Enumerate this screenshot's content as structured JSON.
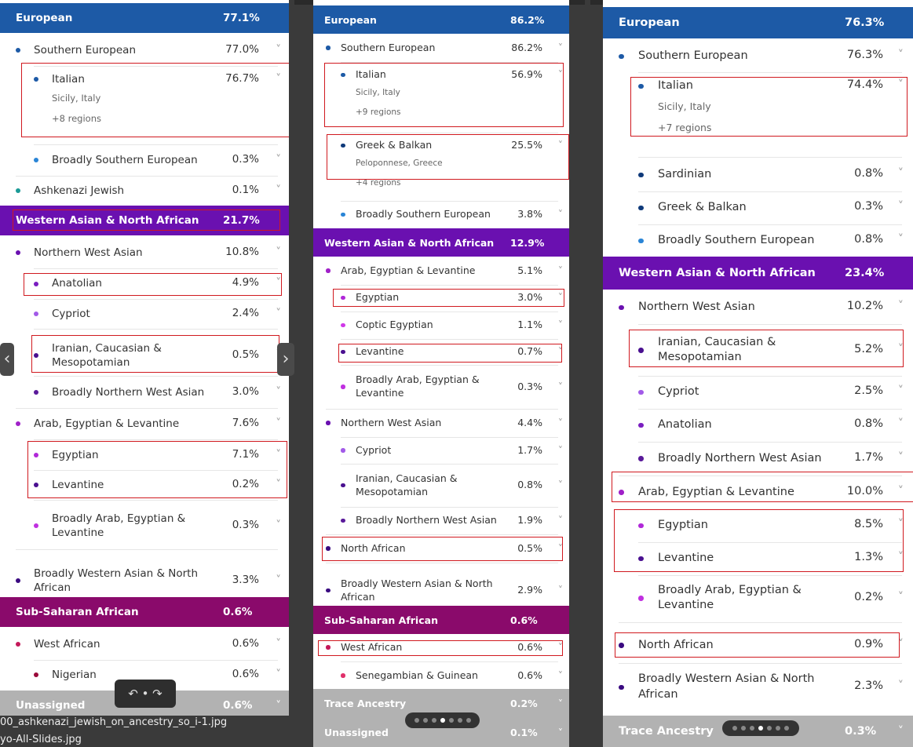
{
  "colors": {
    "european": "#1d5aa6",
    "wana": "#6a10b0",
    "ssa": "#8a0a6b",
    "grey": "#b2b2b2",
    "hl": "#d0191f"
  },
  "nav": {
    "prev_icon": "chevron-left-icon",
    "next_icon": "chevron-right-icon",
    "arrow_left": "‹",
    "arrow_right": "›",
    "undo_redo": "↶ • ↷"
  },
  "captions": {
    "file1": "00_ashkenazi_jewish_on_ancestry_so_i-1.jpg",
    "file2": "yo-All-Slides.jpg"
  },
  "panels": [
    {
      "id": "panel-1",
      "items": [
        {
          "k": "region",
          "label": "European",
          "pct": "77.1%",
          "color": "european"
        },
        {
          "k": "row",
          "lvl": 1,
          "label": "Southern European",
          "pct": "77.0%",
          "dot": "#1d5aa6"
        },
        {
          "k": "row",
          "lvl": 2,
          "label": "Italian",
          "pct": "76.7%",
          "dot": "#1d5aa6",
          "sub": "Sicily, Italy",
          "sub2": "+8 regions"
        },
        {
          "k": "row",
          "lvl": 2,
          "label": "Broadly Southern European",
          "pct": "0.3%",
          "dot": "#2a85d6"
        },
        {
          "k": "row",
          "lvl": 1,
          "label": "Ashkenazi Jewish",
          "pct": "0.1%",
          "dot": "#1a9a96"
        },
        {
          "k": "region",
          "label": "Western Asian & North African",
          "pct": "21.7%",
          "color": "wana"
        },
        {
          "k": "row",
          "lvl": 1,
          "label": "Northern West Asian",
          "pct": "10.8%",
          "dot": "#6a10b0"
        },
        {
          "k": "row",
          "lvl": 2,
          "label": "Anatolian",
          "pct": "4.9%",
          "dot": "#7a1ec0"
        },
        {
          "k": "row",
          "lvl": 2,
          "label": "Cypriot",
          "pct": "2.4%",
          "dot": "#a25ae8"
        },
        {
          "k": "row",
          "lvl": 2,
          "label": "Iranian, Caucasian &",
          "label2": "Mesopotamian",
          "pct": "0.5%",
          "dot": "#4a1090"
        },
        {
          "k": "row",
          "lvl": 2,
          "label": "Broadly Northern West Asian",
          "pct": "3.0%",
          "dot": "#5a1a9a"
        },
        {
          "k": "row",
          "lvl": 1,
          "label": "Arab, Egyptian & Levantine",
          "pct": "7.6%",
          "dot": "#a020c8"
        },
        {
          "k": "row",
          "lvl": 2,
          "label": "Egyptian",
          "pct": "7.1%",
          "dot": "#b028d8"
        },
        {
          "k": "row",
          "lvl": 2,
          "label": "Levantine",
          "pct": "0.2%",
          "dot": "#4a1090"
        },
        {
          "k": "row",
          "lvl": 2,
          "label": "Broadly Arab, Egyptian &",
          "label2": "Levantine",
          "pct": "0.3%",
          "dot": "#c030e0"
        },
        {
          "k": "row",
          "lvl": 1,
          "label": "Broadly Western Asian & North",
          "label2": "African",
          "pct": "3.3%",
          "dot": "#3a0a80"
        },
        {
          "k": "region",
          "label": "Sub-Saharan African",
          "pct": "0.6%",
          "color": "ssa"
        },
        {
          "k": "row",
          "lvl": 1,
          "label": "West African",
          "pct": "0.6%",
          "dot": "#c4195a"
        },
        {
          "k": "row",
          "lvl": 2,
          "label": "Nigerian",
          "pct": "0.6%",
          "dot": "#9a0a3a"
        },
        {
          "k": "region",
          "label": "Unassigned",
          "pct": "0.6%",
          "color": "grey"
        }
      ]
    },
    {
      "id": "panel-2",
      "items": [
        {
          "k": "region",
          "label": "European",
          "pct": "86.2%",
          "color": "european"
        },
        {
          "k": "row",
          "lvl": 1,
          "label": "Southern European",
          "pct": "86.2%",
          "dot": "#1d5aa6"
        },
        {
          "k": "row",
          "lvl": 2,
          "label": "Italian",
          "pct": "56.9%",
          "dot": "#1d5aa6",
          "sub": "Sicily, Italy",
          "sub2": "+9 regions"
        },
        {
          "k": "row",
          "lvl": 2,
          "label": "Greek & Balkan",
          "pct": "25.5%",
          "dot": "#0f3a7a",
          "sub": "Peloponnese, Greece",
          "sub2": "+4 regions"
        },
        {
          "k": "row",
          "lvl": 2,
          "label": "Broadly Southern European",
          "pct": "3.8%",
          "dot": "#2a85d6"
        },
        {
          "k": "region",
          "label": "Western Asian & North African",
          "pct": "12.9%",
          "color": "wana"
        },
        {
          "k": "row",
          "lvl": 1,
          "label": "Arab, Egyptian & Levantine",
          "pct": "5.1%",
          "dot": "#a020c8"
        },
        {
          "k": "row",
          "lvl": 2,
          "label": "Egyptian",
          "pct": "3.0%",
          "dot": "#b028d8"
        },
        {
          "k": "row",
          "lvl": 2,
          "label": "Coptic Egyptian",
          "pct": "1.1%",
          "dot": "#d038e8"
        },
        {
          "k": "row",
          "lvl": 2,
          "label": "Levantine",
          "pct": "0.7%",
          "dot": "#4a1090"
        },
        {
          "k": "row",
          "lvl": 2,
          "label": "Broadly Arab, Egyptian &",
          "label2": "Levantine",
          "pct": "0.3%",
          "dot": "#c030e0"
        },
        {
          "k": "row",
          "lvl": 1,
          "label": "Northern West Asian",
          "pct": "4.4%",
          "dot": "#6a10b0"
        },
        {
          "k": "row",
          "lvl": 2,
          "label": "Cypriot",
          "pct": "1.7%",
          "dot": "#a25ae8"
        },
        {
          "k": "row",
          "lvl": 2,
          "label": "Iranian, Caucasian &",
          "label2": "Mesopotamian",
          "pct": "0.8%",
          "dot": "#4a1090"
        },
        {
          "k": "row",
          "lvl": 2,
          "label": "Broadly Northern West Asian",
          "pct": "1.9%",
          "dot": "#5a1a9a"
        },
        {
          "k": "row",
          "lvl": 1,
          "label": "North African",
          "pct": "0.5%",
          "dot": "#3a0a80"
        },
        {
          "k": "row",
          "lvl": 1,
          "label": "Broadly Western Asian & North",
          "label2": "African",
          "pct": "2.9%",
          "dot": "#3a0a80"
        },
        {
          "k": "region",
          "label": "Sub-Saharan African",
          "pct": "0.6%",
          "color": "ssa"
        },
        {
          "k": "row",
          "lvl": 1,
          "label": "West African",
          "pct": "0.6%",
          "dot": "#c4195a"
        },
        {
          "k": "row",
          "lvl": 2,
          "label": "Senegambian & Guinean",
          "pct": "0.6%",
          "dot": "#e0306a"
        },
        {
          "k": "region",
          "label": "Trace Ancestry",
          "pct": "0.2%",
          "color": "grey"
        },
        {
          "k": "region",
          "label": "Unassigned",
          "pct": "0.1%",
          "color": "grey"
        }
      ]
    },
    {
      "id": "panel-3",
      "items": [
        {
          "k": "region",
          "label": "European",
          "pct": "76.3%",
          "color": "european"
        },
        {
          "k": "row",
          "lvl": 1,
          "label": "Southern European",
          "pct": "76.3%",
          "dot": "#1d5aa6"
        },
        {
          "k": "row",
          "lvl": 2,
          "label": "Italian",
          "pct": "74.4%",
          "dot": "#1d5aa6",
          "sub": "Sicily, Italy",
          "sub2": "+7 regions"
        },
        {
          "k": "row",
          "lvl": 2,
          "label": "Sardinian",
          "pct": "0.8%",
          "dot": "#0f3a7a"
        },
        {
          "k": "row",
          "lvl": 2,
          "label": "Greek & Balkan",
          "pct": "0.3%",
          "dot": "#0f3a7a"
        },
        {
          "k": "row",
          "lvl": 2,
          "label": "Broadly Southern European",
          "pct": "0.8%",
          "dot": "#2a85d6"
        },
        {
          "k": "region",
          "label": "Western Asian & North African",
          "pct": "23.4%",
          "color": "wana"
        },
        {
          "k": "row",
          "lvl": 1,
          "label": "Northern West Asian",
          "pct": "10.2%",
          "dot": "#6a10b0"
        },
        {
          "k": "row",
          "lvl": 2,
          "label": "Iranian, Caucasian &",
          "label2": "Mesopotamian",
          "pct": "5.2%",
          "dot": "#4a1090"
        },
        {
          "k": "row",
          "lvl": 2,
          "label": "Cypriot",
          "pct": "2.5%",
          "dot": "#a25ae8"
        },
        {
          "k": "row",
          "lvl": 2,
          "label": "Anatolian",
          "pct": "0.8%",
          "dot": "#7a1ec0"
        },
        {
          "k": "row",
          "lvl": 2,
          "label": "Broadly Northern West Asian",
          "pct": "1.7%",
          "dot": "#5a1a9a"
        },
        {
          "k": "row",
          "lvl": 1,
          "label": "Arab, Egyptian & Levantine",
          "pct": "10.0%",
          "dot": "#a020c8"
        },
        {
          "k": "row",
          "lvl": 2,
          "label": "Egyptian",
          "pct": "8.5%",
          "dot": "#b028d8"
        },
        {
          "k": "row",
          "lvl": 2,
          "label": "Levantine",
          "pct": "1.3%",
          "dot": "#4a1090"
        },
        {
          "k": "row",
          "lvl": 2,
          "label": "Broadly Arab, Egyptian &",
          "label2": "Levantine",
          "pct": "0.2%",
          "dot": "#c030e0"
        },
        {
          "k": "row",
          "lvl": 1,
          "label": "North African",
          "pct": "0.9%",
          "dot": "#3a0a80"
        },
        {
          "k": "row",
          "lvl": 1,
          "label": "Broadly Western Asian & North",
          "label2": "African",
          "pct": "2.3%",
          "dot": "#3a0a80"
        },
        {
          "k": "region",
          "label": "Trace Ancestry",
          "pct": "0.3%",
          "color": "grey"
        }
      ]
    }
  ]
}
